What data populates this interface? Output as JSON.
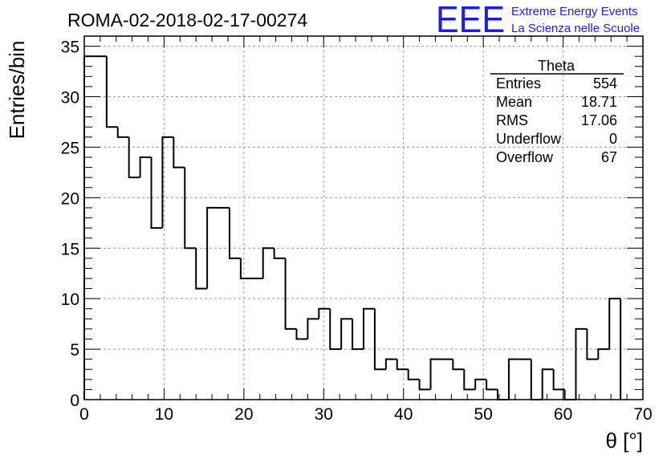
{
  "chart_data": {
    "type": "bar",
    "title": "ROMA-02-2018-02-17-00274",
    "xlabel": "θ [°]",
    "ylabel": "Entries/bin",
    "xlim": [
      0,
      70
    ],
    "ylim": [
      0,
      36
    ],
    "x_ticks": [
      0,
      10,
      20,
      30,
      40,
      50,
      60,
      70
    ],
    "y_ticks": [
      0,
      5,
      10,
      15,
      20,
      25,
      30,
      35
    ],
    "grid": true,
    "bin_width": 1.4,
    "values": [
      34,
      34,
      27,
      26,
      22,
      24,
      17,
      26,
      23,
      15,
      11,
      19,
      19,
      14,
      12,
      12,
      15,
      14,
      7,
      6,
      8,
      9,
      5,
      8,
      5,
      9,
      3,
      4,
      3,
      2,
      1,
      4,
      4,
      3,
      1,
      2,
      1,
      0,
      4,
      4,
      0,
      3,
      1,
      0,
      7,
      4,
      5,
      10
    ],
    "stats_box": {
      "name": "Theta",
      "rows": [
        {
          "label": "Entries",
          "value": "554"
        },
        {
          "label": "Mean",
          "value": "18.71"
        },
        {
          "label": "RMS",
          "value": "17.06"
        },
        {
          "label": "Underflow",
          "value": "0"
        },
        {
          "label": "Overflow",
          "value": "67"
        }
      ]
    }
  },
  "logo": {
    "big": "EEE",
    "line1": "Extreme Energy Events",
    "line2": "La Scienza nelle Scuole",
    "color": "#1c1cf0"
  }
}
